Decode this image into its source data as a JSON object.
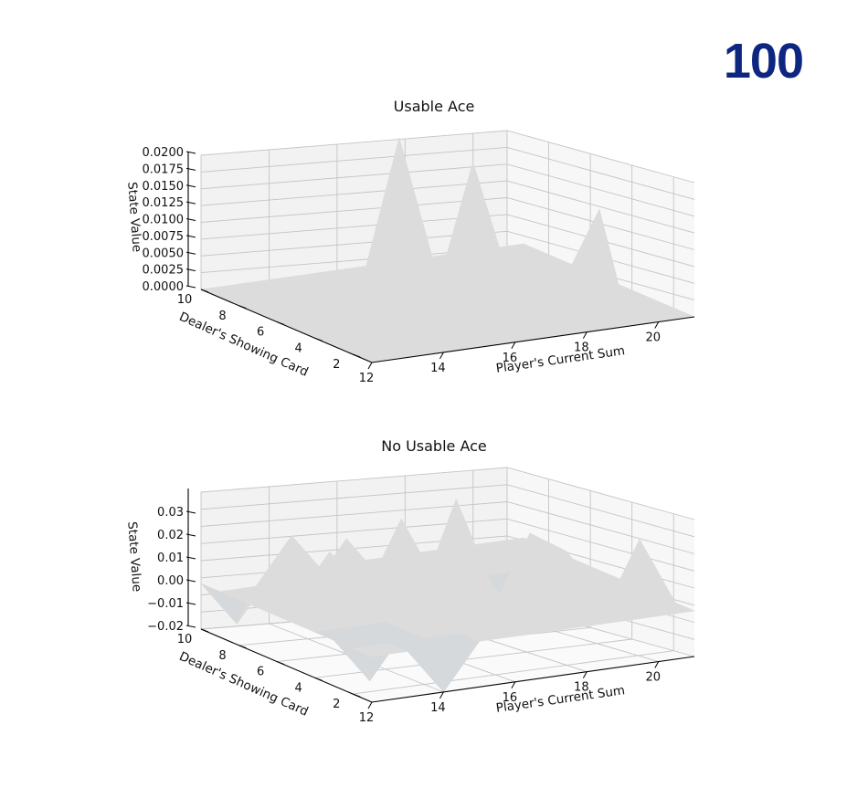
{
  "episode_label": "100",
  "surface_color": "#dcdcdc",
  "chart_data": [
    {
      "type": "surface",
      "title": "Usable Ace",
      "xlabel": "Player's Current Sum",
      "ylabel": "Dealer's Showing Card",
      "zlabel": "State Value",
      "x": [
        12,
        13,
        14,
        15,
        16,
        17,
        18,
        19,
        20,
        21
      ],
      "y": [
        1,
        2,
        3,
        4,
        5,
        6,
        7,
        8,
        9,
        10
      ],
      "xticks": [
        "12",
        "14",
        "16",
        "18",
        "20"
      ],
      "yticks": [
        "2",
        "4",
        "6",
        "8",
        "10"
      ],
      "zticks": [
        "0.0000",
        "0.0025",
        "0.0050",
        "0.0075",
        "0.0100",
        "0.0125",
        "0.0150",
        "0.0175",
        "0.0200"
      ],
      "zlim": [
        0,
        0.02
      ],
      "z": [
        [
          0,
          0,
          0,
          0,
          0,
          0,
          0,
          0,
          0,
          0
        ],
        [
          0,
          0,
          0,
          0,
          0,
          0,
          0,
          0,
          0,
          0
        ],
        [
          0,
          0,
          0,
          0,
          0,
          0,
          0,
          0,
          0,
          0
        ],
        [
          0,
          0,
          0,
          0,
          0,
          0,
          0,
          0,
          0,
          0
        ],
        [
          0,
          0,
          0,
          0,
          0,
          0,
          0,
          0,
          0,
          0
        ],
        [
          0,
          0,
          0,
          0,
          0,
          0,
          0,
          0,
          0,
          0.01
        ],
        [
          0,
          0,
          0,
          0,
          0,
          0,
          0.018,
          0,
          0,
          0
        ],
        [
          0,
          0,
          0,
          0,
          0,
          0,
          0,
          0,
          0,
          0
        ],
        [
          0,
          0,
          0,
          0,
          0,
          0.02,
          0,
          0,
          0,
          0
        ],
        [
          0,
          0,
          0,
          0,
          0,
          0,
          0,
          0,
          0,
          0
        ]
      ]
    },
    {
      "type": "surface",
      "title": "No Usable Ace",
      "xlabel": "Player's Current Sum",
      "ylabel": "Dealer's Showing Card",
      "zlabel": "State Value",
      "x": [
        12,
        13,
        14,
        15,
        16,
        17,
        18,
        19,
        20,
        21
      ],
      "y": [
        1,
        2,
        3,
        4,
        5,
        6,
        7,
        8,
        9,
        10
      ],
      "xticks": [
        "12",
        "14",
        "16",
        "18",
        "20"
      ],
      "yticks": [
        "2",
        "4",
        "6",
        "8",
        "10"
      ],
      "zticks": [
        "−0.02",
        "−0.01",
        "0.00",
        "0.01",
        "0.02",
        "0.03"
      ],
      "zlim": [
        -0.02,
        0.04
      ],
      "z": [
        [
          0,
          0,
          -0.02,
          0,
          0,
          0,
          0,
          0,
          0,
          0
        ],
        [
          0,
          0,
          0,
          0,
          0.01,
          0,
          0,
          0,
          0.03,
          0
        ],
        [
          0,
          -0.02,
          0,
          0,
          0,
          0,
          0,
          0,
          0,
          0
        ],
        [
          0,
          0,
          0,
          0.02,
          0,
          0,
          0.03,
          0.02,
          0,
          0
        ],
        [
          0,
          0,
          0,
          0,
          0,
          0,
          0,
          0,
          0,
          0
        ],
        [
          0,
          0,
          0,
          0,
          0,
          0.04,
          0,
          -0.015,
          0,
          0
        ],
        [
          0,
          0,
          0.02,
          0,
          0.03,
          0,
          0,
          0,
          0,
          0
        ],
        [
          0,
          0,
          0,
          0.02,
          0,
          0,
          0,
          0,
          0,
          0
        ],
        [
          0,
          0,
          0.02,
          0,
          0,
          0,
          0,
          0,
          0,
          0
        ],
        [
          0,
          -0.02,
          0,
          0,
          0,
          0,
          0,
          0,
          0,
          0
        ]
      ]
    }
  ]
}
